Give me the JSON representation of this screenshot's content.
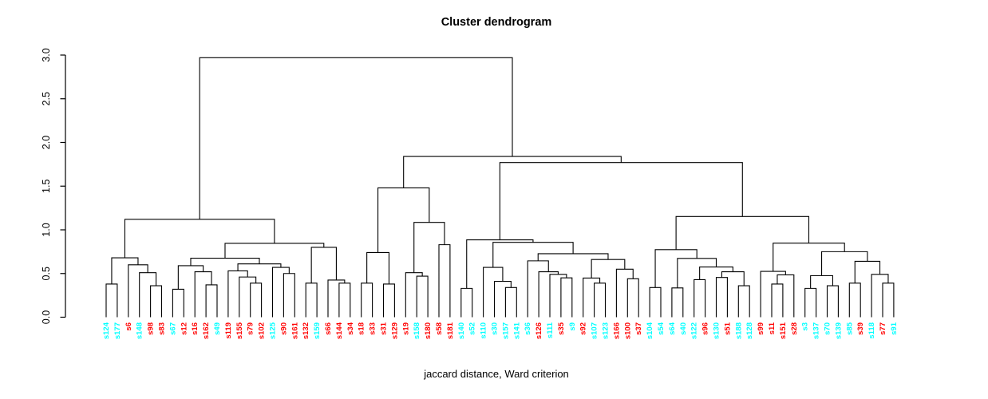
{
  "title": "Cluster dendrogram",
  "xlabel": "jaccard distance, Ward criterion",
  "chart_data": {
    "type": "dendrogram",
    "title": "Cluster dendrogram",
    "xlabel": "jaccard distance, Ward criterion",
    "ylabel": "",
    "ylim": [
      0.0,
      3.0
    ],
    "yticks": [
      "0.0",
      "0.5",
      "1.0",
      "1.5",
      "2.0",
      "2.5",
      "3.0"
    ],
    "grid": false,
    "legend": "none",
    "line_color": "#000000",
    "colors": {
      "r": "#FF0000",
      "c": "#00FFFF"
    },
    "leaves": [
      [
        "s124",
        "c"
      ],
      [
        "s177",
        "c"
      ],
      [
        "s6",
        "r"
      ],
      [
        "s148",
        "c"
      ],
      [
        "s98",
        "r"
      ],
      [
        "s83",
        "r"
      ],
      [
        "s67",
        "c"
      ],
      [
        "s12",
        "r"
      ],
      [
        "s16",
        "r"
      ],
      [
        "s162",
        "r"
      ],
      [
        "s49",
        "c"
      ],
      [
        "s119",
        "r"
      ],
      [
        "s155",
        "r"
      ],
      [
        "s79",
        "r"
      ],
      [
        "s102",
        "r"
      ],
      [
        "s125",
        "c"
      ],
      [
        "s90",
        "r"
      ],
      [
        "s161",
        "r"
      ],
      [
        "s132",
        "r"
      ],
      [
        "s159",
        "c"
      ],
      [
        "s66",
        "r"
      ],
      [
        "s144",
        "r"
      ],
      [
        "s34",
        "r"
      ],
      [
        "s18",
        "r"
      ],
      [
        "s33",
        "r"
      ],
      [
        "s31",
        "r"
      ],
      [
        "s129",
        "r"
      ],
      [
        "s19",
        "r"
      ],
      [
        "s158",
        "c"
      ],
      [
        "s180",
        "r"
      ],
      [
        "s58",
        "r"
      ],
      [
        "s181",
        "r"
      ],
      [
        "s140",
        "c"
      ],
      [
        "s52",
        "c"
      ],
      [
        "s110",
        "c"
      ],
      [
        "s30",
        "c"
      ],
      [
        "s157",
        "c"
      ],
      [
        "s141",
        "c"
      ],
      [
        "s36",
        "c"
      ],
      [
        "s126",
        "r"
      ],
      [
        "s111",
        "c"
      ],
      [
        "s35",
        "r"
      ],
      [
        "s9",
        "c"
      ],
      [
        "s92",
        "r"
      ],
      [
        "s107",
        "c"
      ],
      [
        "s123",
        "c"
      ],
      [
        "s166",
        "r"
      ],
      [
        "s100",
        "r"
      ],
      [
        "s37",
        "r"
      ],
      [
        "s104",
        "c"
      ],
      [
        "s54",
        "c"
      ],
      [
        "s64",
        "c"
      ],
      [
        "s40",
        "c"
      ],
      [
        "s122",
        "c"
      ],
      [
        "s96",
        "r"
      ],
      [
        "s130",
        "c"
      ],
      [
        "s51",
        "r"
      ],
      [
        "s188",
        "c"
      ],
      [
        "s128",
        "c"
      ],
      [
        "s99",
        "r"
      ],
      [
        "s11",
        "r"
      ],
      [
        "s151",
        "r"
      ],
      [
        "s28",
        "r"
      ],
      [
        "s3",
        "c"
      ],
      [
        "s137",
        "c"
      ],
      [
        "s70",
        "c"
      ],
      [
        "s139",
        "c"
      ],
      [
        "s85",
        "c"
      ],
      [
        "s39",
        "r"
      ],
      [
        "s118",
        "c"
      ],
      [
        "s77",
        "r"
      ],
      [
        "s91",
        "c"
      ]
    ],
    "tree": [
      2.97,
      [
        1.12,
        [
          0.68,
          [
            0.38,
            "s124",
            "s177"
          ],
          [
            0.6,
            "s6",
            [
              0.51,
              "s148",
              [
                0.36,
                "s98",
                "s83"
              ]
            ]
          ]
        ],
        [
          0.845,
          [
            0.675,
            [
              0.59,
              [
                0.32,
                "s67",
                "s12"
              ],
              [
                0.52,
                "s16",
                [
                  0.37,
                  "s162",
                  "s49"
                ]
              ]
            ],
            [
              0.61,
              [
                0.53,
                "s119",
                [
                  0.46,
                  "s155",
                  [
                    0.39,
                    "s79",
                    "s102"
                  ]
                ]
              ],
              [
                0.57,
                "s125",
                [
                  0.5,
                  "s90",
                  "s161"
                ]
              ]
            ]
          ],
          [
            0.8,
            [
              0.39,
              "s132",
              "s159"
            ],
            [
              0.425,
              "s66",
              [
                0.39,
                "s144",
                "s34"
              ]
            ]
          ]
        ]
      ],
      [
        1.84,
        [
          1.48,
          [
            0.74,
            [
              0.39,
              "s18",
              "s33"
            ],
            [
              0.38,
              "s31",
              "s129"
            ]
          ],
          [
            1.085,
            [
              0.51,
              "s19",
              [
                0.47,
                "s158",
                "s180"
              ]
            ],
            [
              0.83,
              "s58",
              "s181"
            ]
          ]
        ],
        [
          1.77,
          [
            0.885,
            [
              0.33,
              "s140",
              "s52"
            ],
            [
              0.857,
              [
                0.57,
                "s110",
                [
                  0.41,
                  "s30",
                  [
                    0.34,
                    "s157",
                    "s141"
                  ]
                ]
              ],
              [
                0.727,
                [
                  0.645,
                  "s36",
                  [
                    0.52,
                    "s126",
                    [
                      0.49,
                      "s111",
                      [
                        0.45,
                        "s35",
                        "s9"
                      ]
                    ]
                  ]
                ],
                [
                  0.66,
                  [
                    0.448,
                    "s92",
                    [
                      0.39,
                      "s107",
                      "s123"
                    ]
                  ],
                  [
                    0.55,
                    "s166",
                    [
                      0.44,
                      "s100",
                      "s37"
                    ]
                  ]
                ]
              ]
            ]
          ],
          [
            1.152,
            [
              0.773,
              [
                0.34,
                "s104",
                "s54"
              ],
              [
                0.673,
                [
                  0.335,
                  "s64",
                  "s40"
                ],
                [
                  0.575,
                  [
                    0.43,
                    "s122",
                    "s96"
                  ],
                  [
                    0.52,
                    [
                      0.455,
                      "s130",
                      "s51"
                    ],
                    [
                      0.36,
                      "s188",
                      "s128"
                    ]
                  ]
                ]
              ]
            ],
            [
              0.848,
              [
                0.525,
                "s99",
                [
                  0.485,
                  [
                    0.38,
                    "s11",
                    "s151"
                  ],
                  "s28"
                ]
              ],
              [
                0.75,
                [
                  0.475,
                  [
                    0.33,
                    "s3",
                    "s137"
                  ],
                  [
                    0.36,
                    "s70",
                    "s139"
                  ]
                ],
                [
                  0.64,
                  [
                    0.39,
                    "s85",
                    "s39"
                  ],
                  [
                    0.49,
                    "s118",
                    [
                      0.39,
                      "s77",
                      "s91"
                    ]
                  ]
                ]
              ]
            ]
          ]
        ]
      ]
    ]
  }
}
